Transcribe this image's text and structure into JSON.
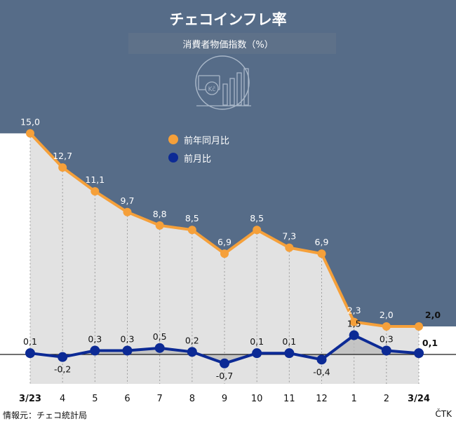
{
  "title": "チェコインフレ率",
  "subtitle": "消費者物価指数（%）",
  "source": "情報元：チェコ統計局",
  "agency": "ČTK",
  "colors": {
    "background_dark": "#566c88",
    "annual": "#f5a03a",
    "monthly": "#0c2a95",
    "area_fill": "#e2e2e2",
    "icon_stroke": "#a9b7c8"
  },
  "icon": "koruna-coin-bar-chart-icon",
  "chart_data": {
    "type": "line",
    "categories": [
      "3/23",
      "4",
      "5",
      "6",
      "7",
      "8",
      "9",
      "10",
      "11",
      "12",
      "1",
      "2",
      "3/24"
    ],
    "bold_categories": [
      "3/23",
      "3/24"
    ],
    "series": [
      {
        "name": "前年同月比",
        "values": [
          15.0,
          12.7,
          11.1,
          9.7,
          8.8,
          8.5,
          6.9,
          8.5,
          7.3,
          6.9,
          2.3,
          2.0,
          2.0
        ],
        "labels": [
          "15,0",
          "12,7",
          "11,1",
          "9,7",
          "8,8",
          "8,5",
          "6,9",
          "8,5",
          "7,3",
          "6,9",
          "2,3",
          "2,0",
          "2,0"
        ]
      },
      {
        "name": "前月比",
        "values": [
          0.1,
          -0.2,
          0.3,
          0.3,
          0.5,
          0.2,
          -0.7,
          0.1,
          0.1,
          -0.4,
          1.5,
          0.3,
          0.1
        ],
        "labels": [
          "0,1",
          "-0,2",
          "0,3",
          "0,3",
          "0,5",
          "0,2",
          "-0,7",
          "0,1",
          "0,1",
          "-0,4",
          "1,5",
          "0,3",
          "0,1"
        ]
      }
    ],
    "baseline": 0
  }
}
